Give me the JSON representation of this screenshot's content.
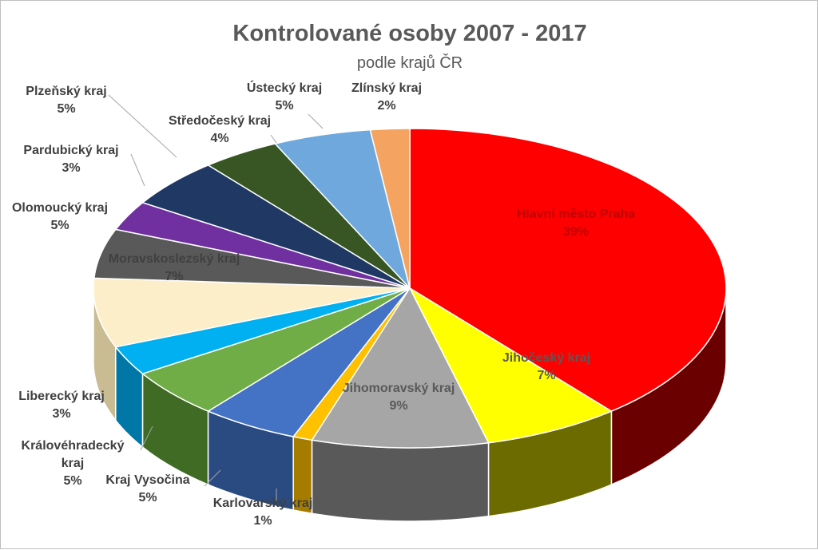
{
  "chart_data": {
    "type": "pie",
    "title": "Kontrolované osoby 2007 - 2017",
    "subtitle": "podle krajů ČR",
    "slices": [
      {
        "name": "Hlavní město Praha",
        "value": 39,
        "label": "39%",
        "color": "#ff0000",
        "side": "#6b0000"
      },
      {
        "name": "Jihočeský kraj",
        "value": 7,
        "label": "7%",
        "color": "#ffff00",
        "side": "#6b6b00"
      },
      {
        "name": "Jihomoravský kraj",
        "value": 9,
        "label": "9%",
        "color": "#a6a6a6",
        "side": "#595959"
      },
      {
        "name": "Karlovarský kraj",
        "value": 1,
        "label": "1%",
        "color": "#ffc000",
        "side": "#a67c00"
      },
      {
        "name": "Kraj Vysočina",
        "value": 5,
        "label": "5%",
        "color": "#4472c4",
        "side": "#2a4a82"
      },
      {
        "name": "Královéhradecký kraj",
        "value": 5,
        "label": "5%",
        "color": "#70ad47",
        "side": "#3f6b24"
      },
      {
        "name": "Liberecký kraj",
        "value": 3,
        "label": "3%",
        "color": "#00b0f0",
        "side": "#0077a6"
      },
      {
        "name": "Moravskoslezský kraj",
        "value": 7,
        "label": "7%",
        "color": "#fbeec8",
        "side": "#c9bb92"
      },
      {
        "name": "Olomoucký kraj",
        "value": 5,
        "label": "5%",
        "color": "#595959",
        "side": "#333333"
      },
      {
        "name": "Pardubický kraj",
        "value": 3,
        "label": "3%",
        "color": "#7030a0",
        "side": "#461c66"
      },
      {
        "name": "Plzeňský kraj",
        "value": 5,
        "label": "5%",
        "color": "#1f3864",
        "side": "#0f1d36"
      },
      {
        "name": "Středočeský kraj",
        "value": 4,
        "label": "4%",
        "color": "#375623",
        "side": "#1f3114"
      },
      {
        "name": "Ústecký kraj",
        "value": 5,
        "label": "5%",
        "color": "#6fa8dc",
        "side": "#3f6f9c"
      },
      {
        "name": "Zlínský kraj",
        "value": 2,
        "label": "2%",
        "color": "#f4a460",
        "side": "#a86a34"
      }
    ]
  }
}
